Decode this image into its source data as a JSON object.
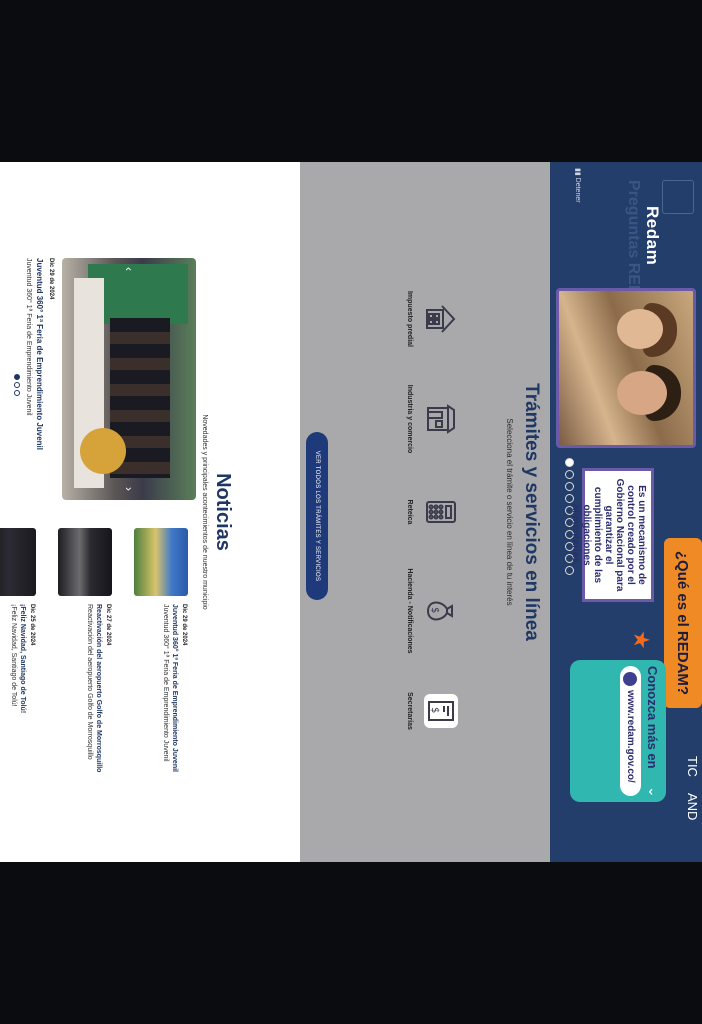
{
  "hero": {
    "title": "Redam",
    "faded_text": "Preguntas REDAM",
    "side_label": "Detener",
    "orange_heading": "¿Qué es el REDAM?",
    "info_box": "Es un mecanismo de control creado por el Gobierno Nacional para garantizar el cumplimiento de las obligaciones alimentarias.",
    "teal_heading": "Conozca más en",
    "teal_url": "www.redam.gov.co/",
    "badge_left": "TIC",
    "badge_right": "AND",
    "slides_total": 10,
    "slides_active": 1
  },
  "services": {
    "title": "Trámites y servicios en línea",
    "subtitle": "Selecciona el trámite o servicio en línea de tu interés",
    "items": [
      {
        "label": "Impuesto predial",
        "icon": "building-icon"
      },
      {
        "label": "Industria y comercio",
        "icon": "store-icon"
      },
      {
        "label": "Reteica",
        "icon": "calculator-icon"
      },
      {
        "label": "Hacienda - Notificaciones",
        "icon": "money-bag-icon"
      },
      {
        "label": "Secretarías",
        "icon": "document-dollar-icon"
      }
    ],
    "button_label": "VER TODOS LOS TRÁMITES Y SERVICIOS"
  },
  "news": {
    "title": "Noticias",
    "subtitle": "Novedades y principales acontecimientos de nuestro municipio",
    "main": {
      "date": "Dic 29 de 2024",
      "headline": "Juventud 360° 1ª Feria de Emprendimiento Juvenil",
      "description": "Juventud 360° 1ª Feria de Emprendimiento Juvenil",
      "dots_total": 3,
      "dots_active": 1
    },
    "list": [
      {
        "date": "Dic 29 de 2024",
        "headline": "Juventud 360° 1ª Feria de Emprendimiento Juvenil",
        "description": "Juventud 360° 1ª Feria de Emprendimiento Juvenil",
        "thumb_text": "JUVENTUD 360"
      },
      {
        "date": "Dic 27 de 2024",
        "headline": "Reactivación del aeropuerto Golfo de Morrosquillo",
        "description": "Reactivación del aeropuerto Golfo de Morrosquillo"
      },
      {
        "date": "Dic 25 de 2024",
        "headline": "¡Feliz Navidad, Santiago de Tolú!",
        "description": "¡Feliz Navidad, Santiago de Tolú!"
      }
    ]
  }
}
